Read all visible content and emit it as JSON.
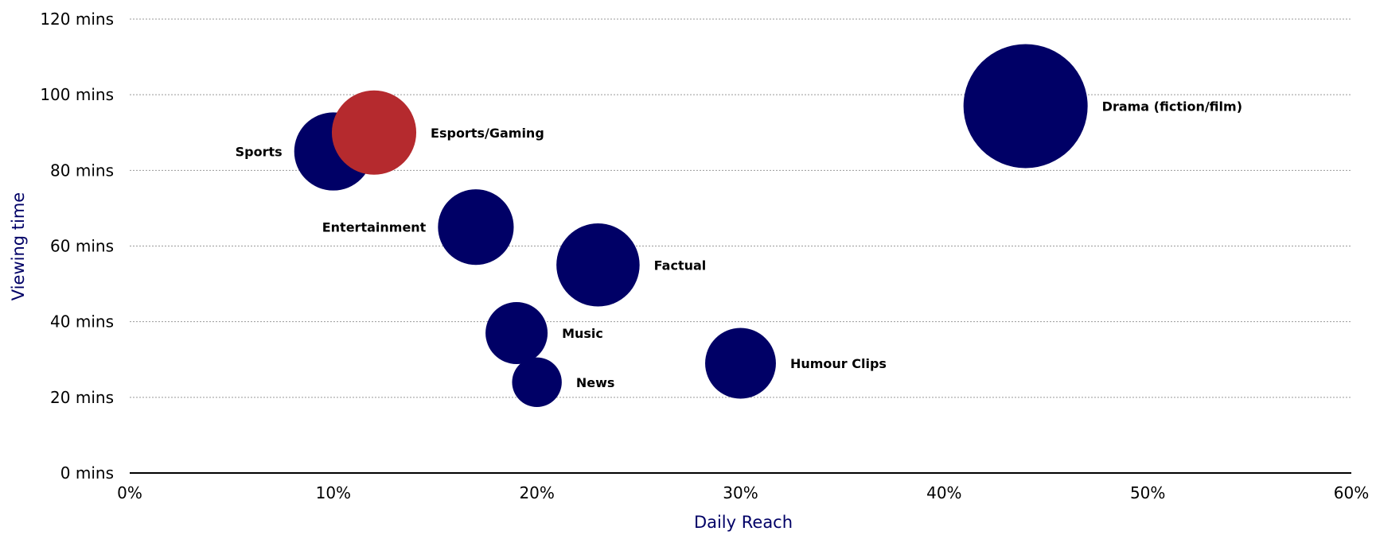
{
  "chart_data": {
    "type": "scatter",
    "subtype": "bubble",
    "xlabel": "Daily Reach",
    "ylabel": "Viewing time",
    "xlim": [
      0,
      60
    ],
    "ylim": [
      0,
      120
    ],
    "x_ticks": [
      0,
      10,
      20,
      30,
      40,
      50,
      60
    ],
    "x_tick_labels": [
      "0%",
      "10%",
      "20%",
      "30%",
      "40%",
      "50%",
      "60%"
    ],
    "y_ticks": [
      0,
      20,
      40,
      60,
      80,
      100,
      120
    ],
    "y_tick_labels": [
      "0 mins",
      "20 mins",
      "40 mins",
      "60 mins",
      "80 mins",
      "100 mins",
      "120 mins"
    ],
    "grid": "horizontal dotted",
    "colors": {
      "default": "#000066",
      "highlight": "#b52a2e",
      "axis_title": "#000066"
    },
    "points": [
      {
        "label": "Drama (fiction/film)",
        "x": 44,
        "y": 97,
        "size": 1.0,
        "label_side": "right",
        "color": "#000066"
      },
      {
        "label": "Sports",
        "x": 10,
        "y": 85,
        "size": 0.63,
        "label_side": "left",
        "color": "#000066"
      },
      {
        "label": "Esports/Gaming",
        "x": 12,
        "y": 90,
        "size": 0.68,
        "label_side": "right",
        "color": "#b52a2e"
      },
      {
        "label": "Entertainment",
        "x": 17,
        "y": 65,
        "size": 0.61,
        "label_side": "left",
        "color": "#000066"
      },
      {
        "label": "Factual",
        "x": 23,
        "y": 55,
        "size": 0.67,
        "label_side": "right",
        "color": "#000066"
      },
      {
        "label": "Music",
        "x": 19,
        "y": 37,
        "size": 0.5,
        "label_side": "right",
        "color": "#000066"
      },
      {
        "label": "News",
        "x": 20,
        "y": 24,
        "size": 0.4,
        "label_side": "right",
        "color": "#000066"
      },
      {
        "label": "Humour Clips",
        "x": 30,
        "y": 29,
        "size": 0.57,
        "label_side": "right",
        "color": "#000066"
      }
    ]
  }
}
